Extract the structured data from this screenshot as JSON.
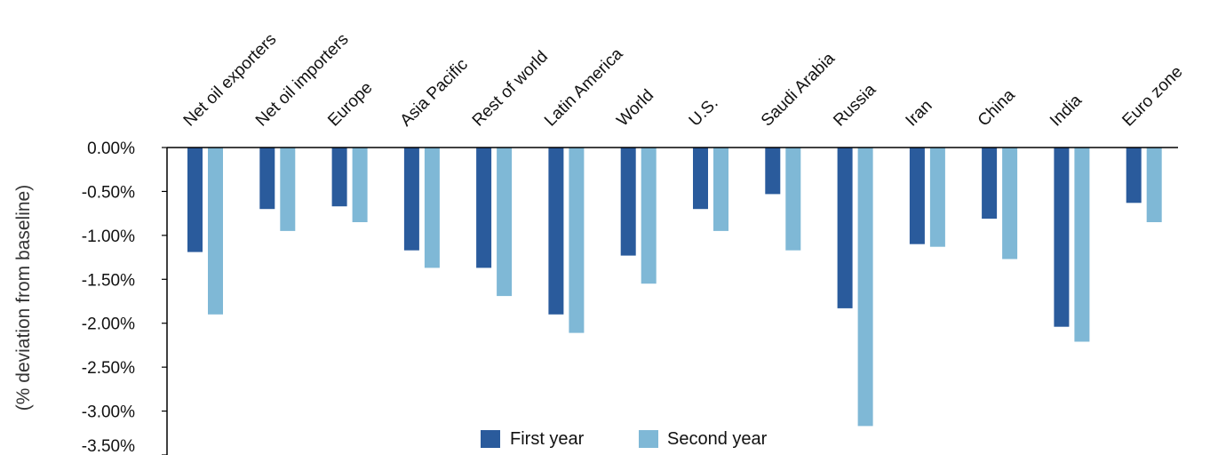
{
  "colors": {
    "first_year": "#2a5b9c",
    "second_year": "#7fb8d6",
    "axis": "#000000"
  },
  "chart_data": {
    "type": "bar",
    "ylabel": "(% deviation from baseline)",
    "ylim": [
      -3.5,
      0
    ],
    "yticks": [
      "0.00%",
      "-0.50%",
      "-1.00%",
      "-1.50%",
      "-2.00%",
      "-2.50%",
      "-3.00%",
      "-3.50%"
    ],
    "ytick_values": [
      0,
      -0.5,
      -1.0,
      -1.5,
      -2.0,
      -2.5,
      -3.0,
      -3.5
    ],
    "categories": [
      "Net oil exporters",
      "Net oil importers",
      "Europe",
      "Asia Pacific",
      "Rest of world",
      "Latin America",
      "World",
      "U.S.",
      "Saudi Arabia",
      "Russia",
      "Iran",
      "China",
      "India",
      "Euro zone"
    ],
    "series": [
      {
        "name": "First year",
        "values": [
          -1.19,
          -0.7,
          -0.67,
          -1.17,
          -1.37,
          -1.9,
          -1.23,
          -0.7,
          -0.53,
          -1.83,
          -1.1,
          -0.81,
          -2.04,
          -0.63
        ]
      },
      {
        "name": "Second year",
        "values": [
          -1.9,
          -0.95,
          -0.85,
          -1.37,
          -1.69,
          -2.11,
          -1.55,
          -0.95,
          -1.17,
          -3.17,
          -1.13,
          -1.27,
          -2.21,
          -0.85
        ]
      }
    ],
    "legend": {
      "placement": "bottom-center"
    },
    "grid": false
  }
}
